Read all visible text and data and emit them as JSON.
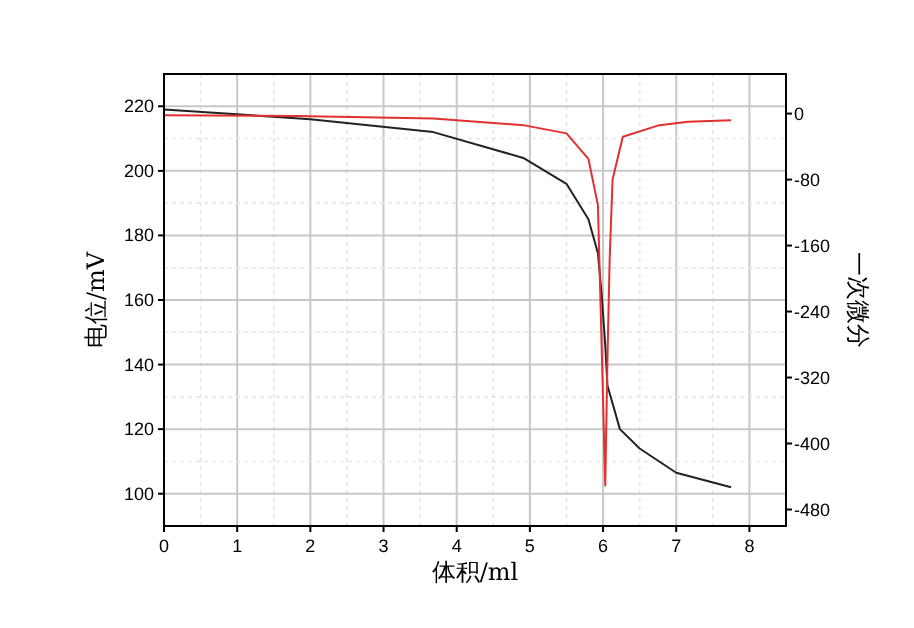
{
  "chart_data": {
    "type": "line",
    "xlabel": "体积/ml",
    "ylabel": "电位/mV",
    "y2label": "一次微分",
    "xlim": [
      0,
      8.5
    ],
    "xticks": [
      0,
      1,
      2,
      3,
      4,
      5,
      6,
      7,
      8
    ],
    "ylim": [
      90,
      230
    ],
    "yticks": [
      100,
      120,
      140,
      160,
      180,
      200,
      220
    ],
    "y2lim": [
      -500,
      48
    ],
    "y2ticks": [
      0,
      -80,
      -160,
      -240,
      -320,
      -400,
      -480
    ],
    "grid": true,
    "series": [
      {
        "color": "#222222",
        "x": [
          0,
          2,
          3.68,
          4.91,
          5.5,
          5.8,
          5.93,
          5.98,
          6.03,
          6.06,
          6.23,
          6.5,
          7,
          7.75
        ],
        "values": [
          219,
          216,
          212,
          204,
          196,
          185,
          174.5,
          162,
          146,
          133.5,
          120,
          114,
          106.5,
          102
        ]
      },
      {
        "color": "#e03030",
        "axis": "y2",
        "x": [
          0,
          1.8,
          3.68,
          4.91,
          5.5,
          5.8,
          5.93,
          5.97,
          6.03,
          6.06,
          6.09,
          6.13,
          6.27,
          6.77,
          7.16,
          7.75
        ],
        "values": [
          -2,
          -3,
          -6,
          -14,
          -24,
          -55,
          -111,
          -246,
          -451,
          -298,
          -177,
          -80,
          -28,
          -14,
          -10,
          -8
        ]
      }
    ]
  }
}
